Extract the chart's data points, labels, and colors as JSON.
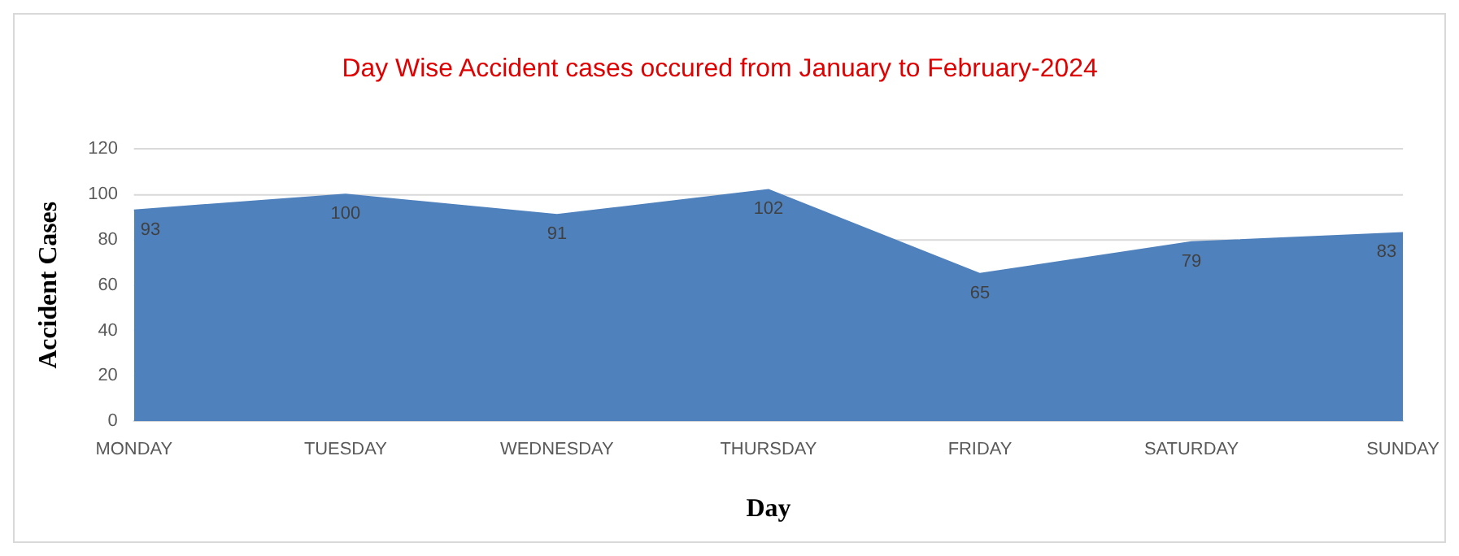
{
  "chart_data": {
    "type": "area",
    "title": "Day Wise Accident cases occured from January to February-2024",
    "xlabel": "Day",
    "ylabel": "Accident Cases",
    "categories": [
      "MONDAY",
      "TUESDAY",
      "WEDNESDAY",
      "THURSDAY",
      "FRIDAY",
      "SATURDAY",
      "SUNDAY"
    ],
    "values": [
      93,
      100,
      91,
      102,
      65,
      79,
      83
    ],
    "color": "#4f81bd",
    "ylim": [
      0,
      120
    ],
    "yticks": [
      0,
      20,
      40,
      60,
      80,
      100,
      120
    ],
    "grid": "y",
    "data_labels": true,
    "legend": false
  }
}
